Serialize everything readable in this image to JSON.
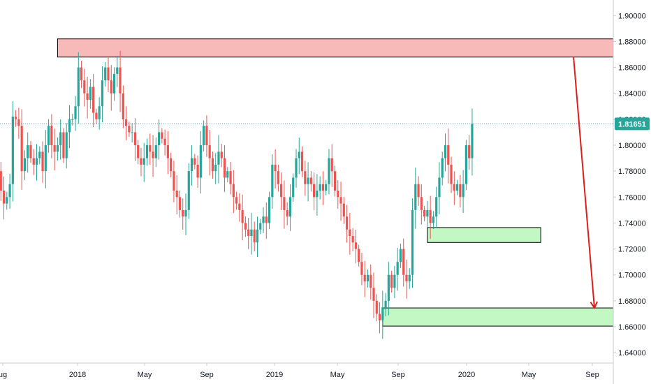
{
  "chart_data": {
    "type": "candlestick",
    "y_range": [
      1.632,
      1.912
    ],
    "y_ticks": [
      "1.90000",
      "1.88000",
      "1.86000",
      "1.84000",
      "1.82000",
      "1.80000",
      "1.78000",
      "1.76000",
      "1.74000",
      "1.72000",
      "1.70000",
      "1.68000",
      "1.66000",
      "1.64000"
    ],
    "x_labels": [
      "ug",
      "2018",
      "May",
      "Sep",
      "2019",
      "May",
      "Sep",
      "2020",
      "May",
      "Sep"
    ],
    "current_price": 1.8165,
    "current_price_label": "1.81651",
    "zones": [
      {
        "name": "resistance-zone",
        "y_top": 1.882,
        "y_bottom": 1.868,
        "x_start_index": 20,
        "x_end_index": 216,
        "color": "#f8b9b9"
      },
      {
        "name": "support-zone-upper",
        "y_top": 1.7365,
        "y_bottom": 1.725,
        "x_start_index": 144,
        "x_end_index": 182,
        "color": "#c3f7c3"
      },
      {
        "name": "support-zone-lower",
        "y_top": 1.6745,
        "y_bottom": 1.6605,
        "x_start_index": 129,
        "x_end_index": 216,
        "color": "#c3f7c3"
      }
    ],
    "arrow": {
      "from_index": 193,
      "from_price": 1.868,
      "to_index": 200,
      "to_price": 1.6745,
      "color": "#e01b1b"
    },
    "colors": {
      "up": "#26a69a",
      "down": "#ef5350",
      "price_line": "#26a69a",
      "zone_border": "#000000"
    },
    "closes": [
      1.78,
      1.765,
      1.755,
      1.76,
      1.77,
      1.822,
      1.82,
      1.815,
      1.78,
      1.79,
      1.8,
      1.79,
      1.785,
      1.79,
      1.795,
      1.78,
      1.8,
      1.815,
      1.8,
      1.795,
      1.8,
      1.81,
      1.79,
      1.81,
      1.82,
      1.82,
      1.83,
      1.86,
      1.85,
      1.84,
      1.835,
      1.845,
      1.825,
      1.82,
      1.83,
      1.85,
      1.86,
      1.85,
      1.84,
      1.855,
      1.86,
      1.84,
      1.82,
      1.815,
      1.81,
      1.81,
      1.8,
      1.79,
      1.785,
      1.79,
      1.8,
      1.795,
      1.79,
      1.8,
      1.81,
      1.805,
      1.8,
      1.79,
      1.78,
      1.765,
      1.76,
      1.75,
      1.745,
      1.75,
      1.78,
      1.79,
      1.785,
      1.775,
      1.8,
      1.815,
      1.8,
      1.79,
      1.78,
      1.785,
      1.795,
      1.79,
      1.775,
      1.78,
      1.77,
      1.76,
      1.755,
      1.75,
      1.74,
      1.735,
      1.73,
      1.735,
      1.725,
      1.735,
      1.74,
      1.745,
      1.74,
      1.76,
      1.785,
      1.78,
      1.77,
      1.76,
      1.75,
      1.745,
      1.76,
      1.775,
      1.79,
      1.795,
      1.78,
      1.77,
      1.775,
      1.77,
      1.76,
      1.765,
      1.77,
      1.765,
      1.77,
      1.79,
      1.78,
      1.765,
      1.76,
      1.755,
      1.745,
      1.735,
      1.73,
      1.725,
      1.72,
      1.71,
      1.7,
      1.695,
      1.7,
      1.69,
      1.68,
      1.67,
      1.665,
      1.675,
      1.68,
      1.7,
      1.69,
      1.7,
      1.71,
      1.72,
      1.7,
      1.695,
      1.7,
      1.75,
      1.77,
      1.76,
      1.75,
      1.745,
      1.75,
      1.74,
      1.745,
      1.76,
      1.775,
      1.79,
      1.8,
      1.785,
      1.77,
      1.765,
      1.77,
      1.76,
      1.77,
      1.8,
      1.79,
      1.8165
    ]
  }
}
